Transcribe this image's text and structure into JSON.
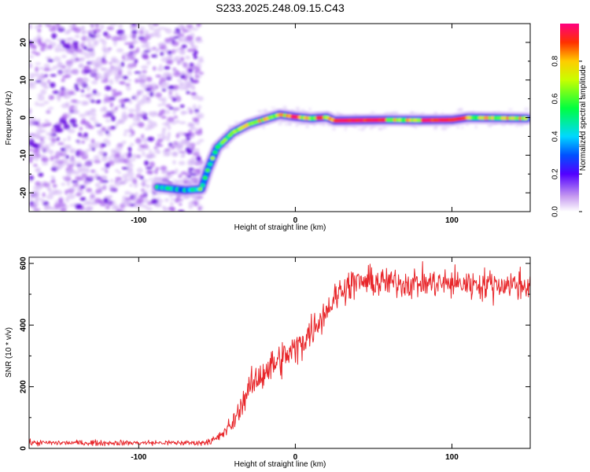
{
  "title": "S233.2025.248.09.15.C43",
  "colors": {
    "snr_line": "#e8262a",
    "noise": "#9a34e8",
    "frame": "#000000"
  },
  "chart_data": [
    {
      "type": "heatmap",
      "xlabel": "Height of straight line (km)",
      "ylabel": "Frequency (Hz)",
      "xlim": [
        -170,
        150
      ],
      "ylim": [
        -25,
        25
      ],
      "xticks": [
        -100,
        0,
        100
      ],
      "xtick_labels": [
        "-100",
        "0",
        "100"
      ],
      "yticks": [
        -20,
        -10,
        0,
        10,
        20
      ],
      "ytick_labels": [
        "-20",
        "-10",
        "0",
        "10",
        "20"
      ],
      "noise_region_x": [
        -170,
        -62
      ],
      "ridge": [
        {
          "x": -88,
          "y": -18.5
        },
        {
          "x": -70,
          "y": -19.3
        },
        {
          "x": -60,
          "y": -19.0
        },
        {
          "x": -56,
          "y": -14
        },
        {
          "x": -50,
          "y": -8
        },
        {
          "x": -40,
          "y": -4
        },
        {
          "x": -30,
          "y": -1.8
        },
        {
          "x": -20,
          "y": -0.5
        },
        {
          "x": -10,
          "y": 0.8
        },
        {
          "x": 0,
          "y": 0.2
        },
        {
          "x": 10,
          "y": -0.2
        },
        {
          "x": 20,
          "y": 0.1
        },
        {
          "x": 25,
          "y": -0.8
        },
        {
          "x": 60,
          "y": -0.6
        },
        {
          "x": 80,
          "y": -0.7
        },
        {
          "x": 100,
          "y": -0.6
        },
        {
          "x": 110,
          "y": 0.0
        },
        {
          "x": 148,
          "y": -0.2
        }
      ],
      "colorbar": {
        "label": "Normalized spectral amplitude",
        "range": [
          0,
          1
        ],
        "ticks": [
          0.0,
          0.2,
          0.4,
          0.6,
          0.8
        ],
        "tick_labels": [
          "0.0",
          "0.2",
          "0.4",
          "0.6",
          "0.8"
        ]
      }
    },
    {
      "type": "line",
      "xlabel": "Height of straight line (km)",
      "ylabel": "SNR (10 * v/v)",
      "xlim": [
        -170,
        150
      ],
      "ylim": [
        0,
        620
      ],
      "xticks": [
        -100,
        0,
        100
      ],
      "xtick_labels": [
        "-100",
        "0",
        "100"
      ],
      "yticks": [
        0,
        200,
        400,
        600
      ],
      "ytick_labels": [
        "0",
        "200",
        "400",
        "600"
      ],
      "trend": [
        {
          "x": -170,
          "y": 18
        },
        {
          "x": -60,
          "y": 18
        },
        {
          "x": -50,
          "y": 30
        },
        {
          "x": -40,
          "y": 80
        },
        {
          "x": -30,
          "y": 190
        },
        {
          "x": -20,
          "y": 250
        },
        {
          "x": 0,
          "y": 320
        },
        {
          "x": 10,
          "y": 380
        },
        {
          "x": 20,
          "y": 450
        },
        {
          "x": 30,
          "y": 520
        },
        {
          "x": 40,
          "y": 540
        },
        {
          "x": 150,
          "y": 530
        }
      ],
      "noise_amplitude": [
        {
          "x": -170,
          "a": 8
        },
        {
          "x": -60,
          "a": 8
        },
        {
          "x": -40,
          "a": 25
        },
        {
          "x": -20,
          "a": 55
        },
        {
          "x": 30,
          "a": 45
        },
        {
          "x": 150,
          "a": 45
        }
      ]
    }
  ]
}
